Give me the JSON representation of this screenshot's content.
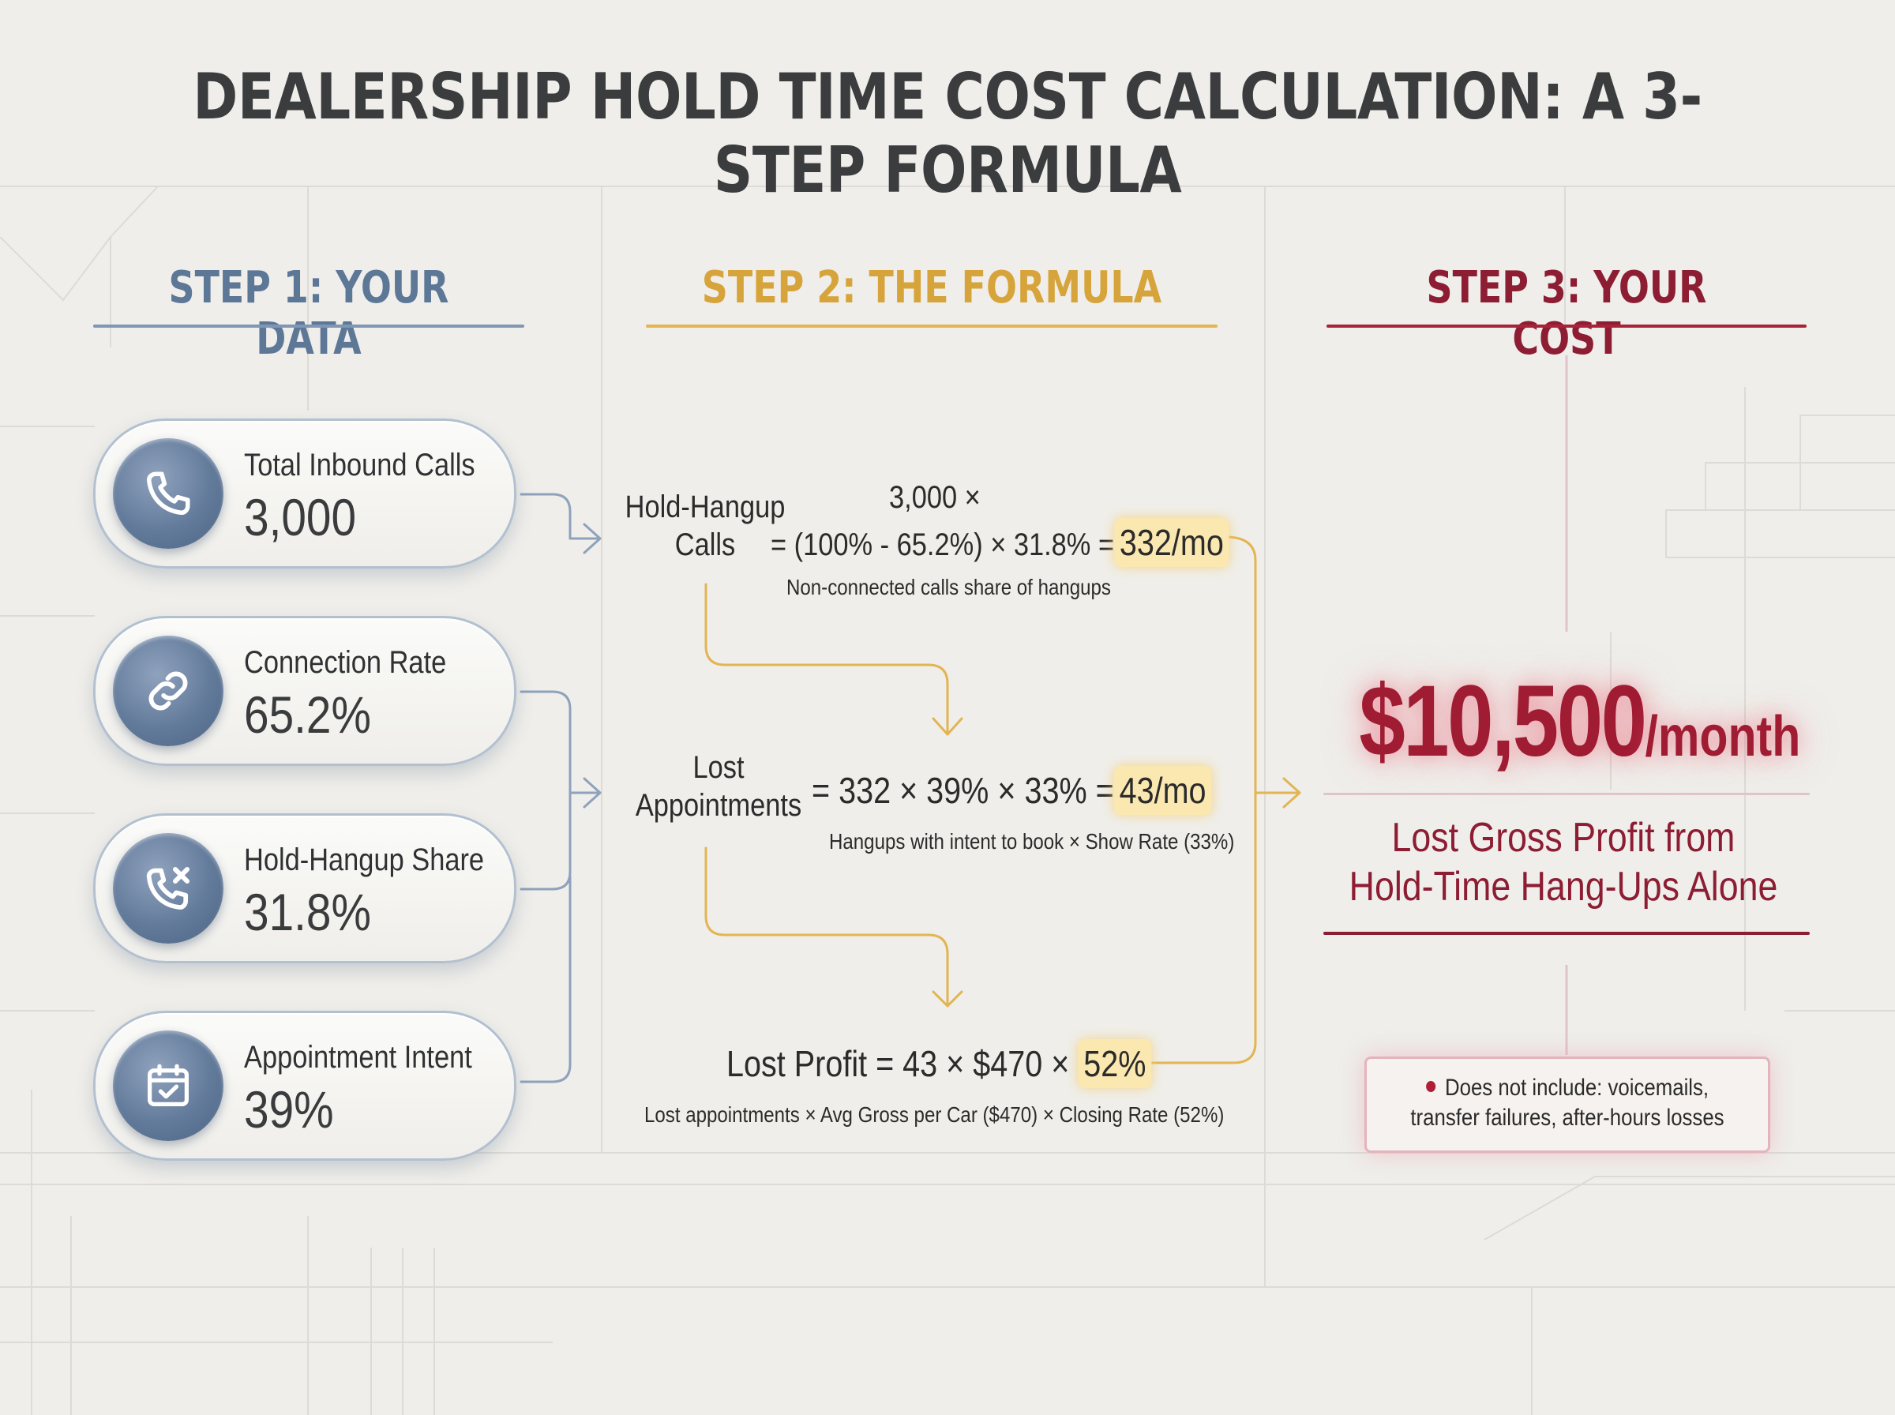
{
  "title": "DEALERSHIP HOLD TIME COST CALCULATION: A 3-STEP FORMULA",
  "steps": {
    "step1": "STEP 1: YOUR DATA",
    "step2": "STEP 2: THE FORMULA",
    "step3": "STEP 3: YOUR COST"
  },
  "data_cards": [
    {
      "label": "Total Inbound Calls",
      "value": "3,000",
      "icon": "phone-icon"
    },
    {
      "label": "Connection Rate",
      "value": "65.2%",
      "icon": "link-icon"
    },
    {
      "label": "Hold-Hangup Share",
      "value": "31.8%",
      "icon": "phone-hangup-icon"
    },
    {
      "label": "Appointment Intent",
      "value": "39%",
      "icon": "calendar-check-icon"
    }
  ],
  "formula": {
    "hold_hangup": {
      "label": "Hold-Hangup Calls",
      "line1": "3,000 ×",
      "line2": "= (100% - 65.2%) × 31.8% =",
      "result": "332/mo",
      "note": "Non-connected calls share of hangups"
    },
    "lost_appointments": {
      "label": "Lost Appointments",
      "expr": "= 332 × 39% × 33% =",
      "result": "43/mo",
      "note": "Hangups with intent to book × Show Rate (33%)"
    },
    "lost_profit": {
      "expr": "Lost Profit = 43 × $470 ×",
      "result": "52%",
      "note": "Lost appointments × Avg Gross per Car ($470) × Closing Rate (52%)"
    }
  },
  "cost": {
    "amount": "$10,500",
    "unit": "/month",
    "description_line1": "Lost Gross Profit from",
    "description_line2": "Hold-Time Hang-Ups Alone",
    "disclaimer": "Does not include: voicemails, transfer failures, after-hours losses"
  },
  "colors": {
    "step1": "#5d7797",
    "step2": "#d6a43a",
    "step3": "#8d1d33",
    "highlight": "#fbe7b0",
    "background": "#efeeea"
  }
}
